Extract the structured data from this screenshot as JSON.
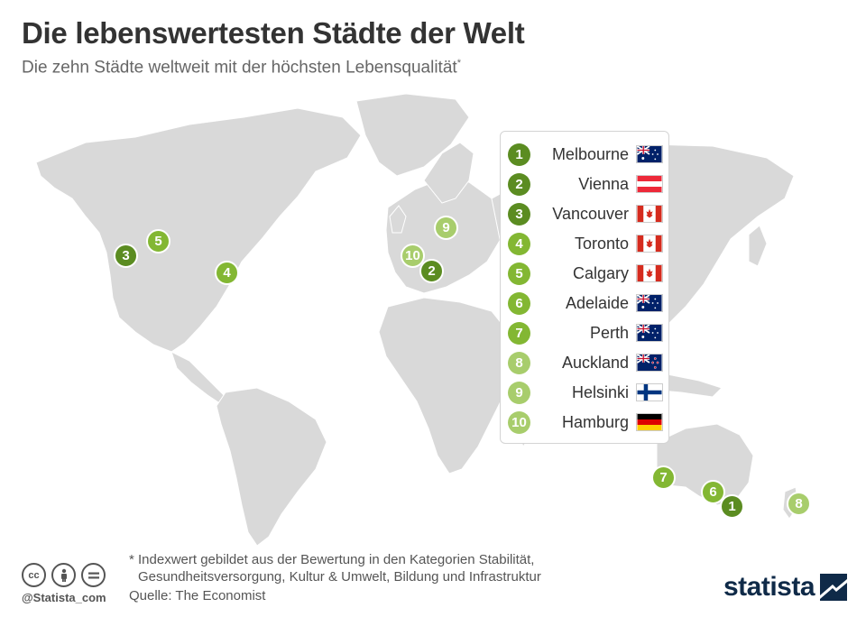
{
  "header": {
    "title": "Die lebenswertesten Städte der Welt",
    "subtitle": "Die zehn Städte weltweit mit der höchsten Lebensqualität",
    "subtitle_mark": "*"
  },
  "colors": {
    "rank_1_3": "#5b8c21",
    "rank_4_7": "#83b733",
    "rank_8_10": "#a8cd6c",
    "land": "#d9d9d9",
    "brand": "#0f2a48"
  },
  "cities": [
    {
      "rank": "1",
      "name": "Melbourne",
      "flag": "australia-flag"
    },
    {
      "rank": "2",
      "name": "Vienna",
      "flag": "austria-flag"
    },
    {
      "rank": "3",
      "name": "Vancouver",
      "flag": "canada-flag"
    },
    {
      "rank": "4",
      "name": "Toronto",
      "flag": "canada-flag"
    },
    {
      "rank": "5",
      "name": "Calgary",
      "flag": "canada-flag"
    },
    {
      "rank": "6",
      "name": "Adelaide",
      "flag": "australia-flag"
    },
    {
      "rank": "7",
      "name": "Perth",
      "flag": "australia-flag"
    },
    {
      "rank": "8",
      "name": "Auckland",
      "flag": "new-zealand-flag"
    },
    {
      "rank": "9",
      "name": "Helsinki",
      "flag": "finland-flag"
    },
    {
      "rank": "10",
      "name": "Hamburg",
      "flag": "germany-flag"
    }
  ],
  "footer": {
    "footnote_line1": "* Indexwert gebildet aus der Bewertung in den Kategorien Stabilität,",
    "footnote_line2": "Gesundheitsversorgung, Kultur & Umwelt, Bildung und Infrastruktur",
    "source": "Quelle: The Economist",
    "handle": "@Statista_com",
    "brand": "statista",
    "license_icons": [
      "cc-icon",
      "by-icon",
      "nd-icon"
    ]
  }
}
